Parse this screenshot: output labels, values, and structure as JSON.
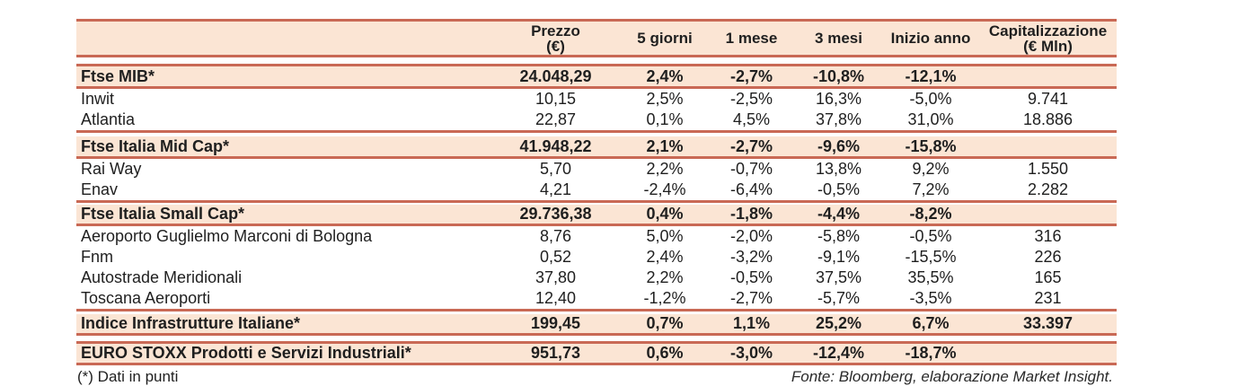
{
  "colors": {
    "divider_red": "#c96955",
    "highlight_peach": "#fbe5d4",
    "text_dark": "#1f1f1f"
  },
  "table": {
    "column_headers": {
      "name": "",
      "prezzo": "Prezzo\n(€)",
      "five_days": "5 giorni",
      "one_month": "1 mese",
      "three_months": "3 mesi",
      "ytd": "Inizio anno",
      "cap": "Capitalizzazione\n(€ Mln)"
    },
    "rows": [
      {
        "type": "index",
        "cells": [
          "Ftse MIB*",
          "24.048,29",
          "2,4%",
          "-2,7%",
          "-10,8%",
          "-12,1%",
          ""
        ]
      },
      {
        "type": "stock",
        "cells": [
          "Inwit",
          "10,15",
          "2,5%",
          "-2,5%",
          "16,3%",
          "-5,0%",
          "9.741"
        ]
      },
      {
        "type": "stock",
        "cells": [
          "Atlantia",
          "22,87",
          "0,1%",
          "4,5%",
          "37,8%",
          "31,0%",
          "18.886"
        ]
      },
      {
        "type": "index",
        "cells": [
          "Ftse Italia Mid Cap*",
          "41.948,22",
          "2,1%",
          "-2,7%",
          "-9,6%",
          "-15,8%",
          ""
        ]
      },
      {
        "type": "stock",
        "cells": [
          "Rai Way",
          "5,70",
          "2,2%",
          "-0,7%",
          "13,8%",
          "9,2%",
          "1.550"
        ]
      },
      {
        "type": "stock",
        "cells": [
          "Enav",
          "4,21",
          "-2,4%",
          "-6,4%",
          "-0,5%",
          "7,2%",
          "2.282"
        ]
      },
      {
        "type": "index",
        "cells": [
          "Ftse Italia Small Cap*",
          "29.736,38",
          "0,4%",
          "-1,8%",
          "-4,4%",
          "-8,2%",
          ""
        ]
      },
      {
        "type": "stock",
        "cells": [
          "Aeroporto Guglielmo Marconi di Bologna",
          "8,76",
          "5,0%",
          "-2,0%",
          "-5,8%",
          "-0,5%",
          "316"
        ]
      },
      {
        "type": "stock",
        "cells": [
          "Fnm",
          "0,52",
          "2,4%",
          "-3,2%",
          "-9,1%",
          "-15,5%",
          "226"
        ]
      },
      {
        "type": "stock",
        "cells": [
          "Autostrade Meridionali",
          "37,80",
          "2,2%",
          "-0,5%",
          "37,5%",
          "35,5%",
          "165"
        ]
      },
      {
        "type": "stock",
        "cells": [
          "Toscana Aeroporti",
          "12,40",
          "-1,2%",
          "-2,7%",
          "-5,7%",
          "-3,5%",
          "231"
        ]
      },
      {
        "type": "index",
        "cells": [
          "Indice Infrastrutture Italiane*",
          "199,45",
          "0,7%",
          "1,1%",
          "25,2%",
          "6,7%",
          "33.397"
        ]
      },
      {
        "type": "index",
        "cells": [
          "EURO STOXX Prodotti e Servizi Industriali*",
          "951,73",
          "0,6%",
          "-3,0%",
          "-12,4%",
          "-18,7%",
          ""
        ]
      }
    ]
  },
  "footer": {
    "note": "(*) Dati in punti",
    "source": "Fonte: Bloomberg, elaborazione Market Insight."
  }
}
